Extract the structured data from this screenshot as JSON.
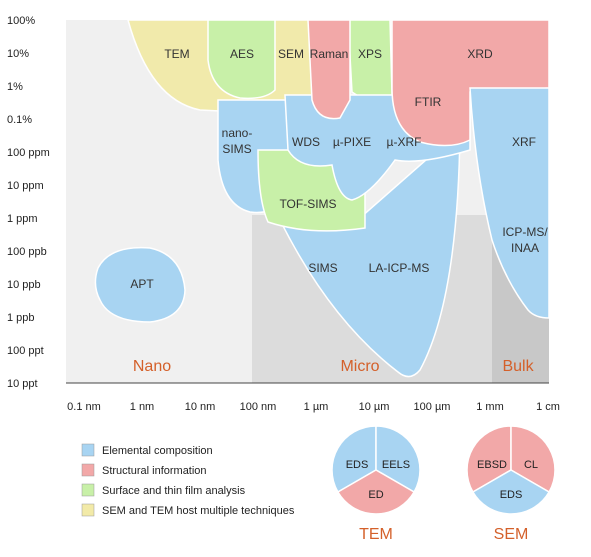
{
  "axes": {
    "y_ticks": [
      "100%",
      "10%",
      "1%",
      "0.1%",
      "100 ppm",
      "10 ppm",
      "1 ppm",
      "100 ppb",
      "10 ppb",
      "1 ppb",
      "100 ppt",
      "10 ppt"
    ],
    "x_ticks": [
      "0.1 nm",
      "1 nm",
      "10 nm",
      "100 nm",
      "1 µm",
      "10 µm",
      "100 µm",
      "1 mm",
      "1 cm"
    ]
  },
  "zones": {
    "nano": "Nano",
    "micro": "Micro",
    "bulk": "Bulk"
  },
  "techniques": {
    "tem": "TEM",
    "aes": "AES",
    "sem": "SEM",
    "raman": "Raman",
    "xps": "XPS",
    "xrd": "XRD",
    "ftir": "FTIR",
    "nano_sims": "nano-\nSIMS",
    "wds": "WDS",
    "u_pixe": "µ-PIXE",
    "u_xrf": "µ-XRF",
    "xrf": "XRF",
    "tof_sims": "TOF-SIMS",
    "icp_ms_inaa": "ICP-MS/\nINAA",
    "sims": "SIMS",
    "la_icp_ms": "LA-ICP-MS",
    "apt": "APT"
  },
  "legend": [
    {
      "label": "Elemental composition",
      "color": "#a8d4f2"
    },
    {
      "label": "Structural information",
      "color": "#f2a8a8"
    },
    {
      "label": "Surface and thin film analysis",
      "color": "#c8f0a8"
    },
    {
      "label": "SEM and TEM host multiple techniques",
      "color": "#f2eaa8"
    }
  ],
  "pies": [
    {
      "title": "TEM",
      "slices": [
        "EDS",
        "EELS",
        "ED"
      ]
    },
    {
      "title": "SEM",
      "slices": [
        "EBSD",
        "CL",
        "EDS"
      ]
    }
  ],
  "colors": {
    "elemental": "#a8d4f2",
    "structural": "#f2a8a8",
    "surface": "#c8f0a8",
    "host": "#f2eaa8",
    "zone_label": "#d4602a"
  }
}
